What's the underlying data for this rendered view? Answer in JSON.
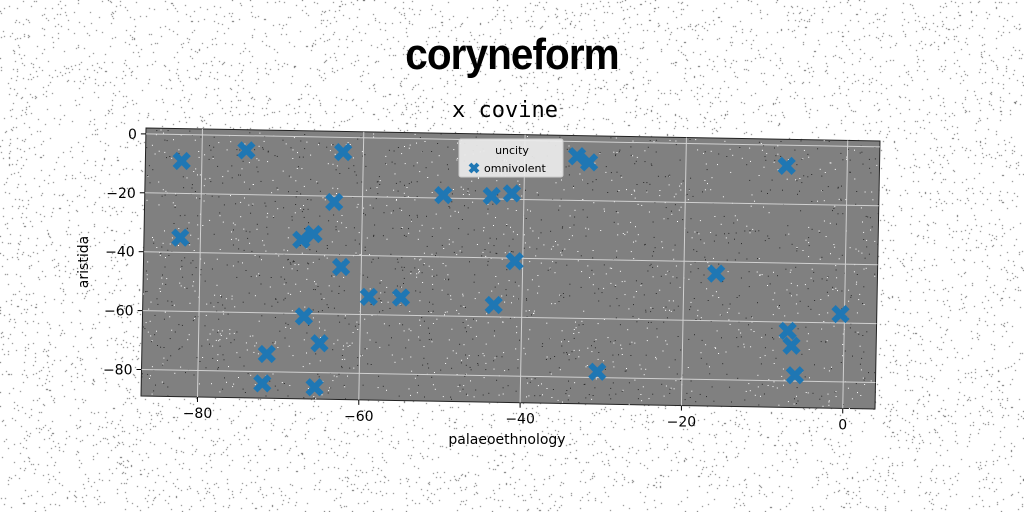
{
  "suptitle": "coryneform",
  "chart_data": {
    "type": "scatter",
    "title": "x covine",
    "xlabel": "palaeoethnology",
    "ylabel": "aristida",
    "xlim": [
      -87,
      4
    ],
    "ylim": [
      -89,
      2
    ],
    "xticks": [
      -80,
      -60,
      -40,
      -20,
      0
    ],
    "yticks": [
      0,
      -20,
      -40,
      -60,
      -80
    ],
    "grid": true,
    "legend": {
      "title": "uncity",
      "placement": "top-center"
    },
    "series": [
      {
        "name": "omnivolent",
        "color": "#1f77b4",
        "marker": "x-filled",
        "points": [
          {
            "x": -82.5,
            "y": -9
          },
          {
            "x": -74.5,
            "y": -5
          },
          {
            "x": -62.5,
            "y": -5
          },
          {
            "x": -63.5,
            "y": -22
          },
          {
            "x": -82.5,
            "y": -35
          },
          {
            "x": -67.5,
            "y": -35
          },
          {
            "x": -66,
            "y": -33
          },
          {
            "x": -62.5,
            "y": -44
          },
          {
            "x": -59,
            "y": -54
          },
          {
            "x": -55,
            "y": -54
          },
          {
            "x": -67,
            "y": -61
          },
          {
            "x": -65,
            "y": -70
          },
          {
            "x": -71.5,
            "y": -74
          },
          {
            "x": -72,
            "y": -84
          },
          {
            "x": -65.5,
            "y": -85
          },
          {
            "x": -50,
            "y": -19
          },
          {
            "x": -44,
            "y": -19
          },
          {
            "x": -41.5,
            "y": -18
          },
          {
            "x": -41,
            "y": -41
          },
          {
            "x": -43.5,
            "y": -56
          },
          {
            "x": -33.5,
            "y": -5
          },
          {
            "x": -32,
            "y": -7
          },
          {
            "x": -30.5,
            "y": -78
          },
          {
            "x": -16,
            "y": -44
          },
          {
            "x": -7.5,
            "y": -7
          },
          {
            "x": -7,
            "y": -63
          },
          {
            "x": -6.5,
            "y": -68
          },
          {
            "x": -6,
            "y": -78
          },
          {
            "x": -0.5,
            "y": -57
          }
        ]
      }
    ]
  }
}
